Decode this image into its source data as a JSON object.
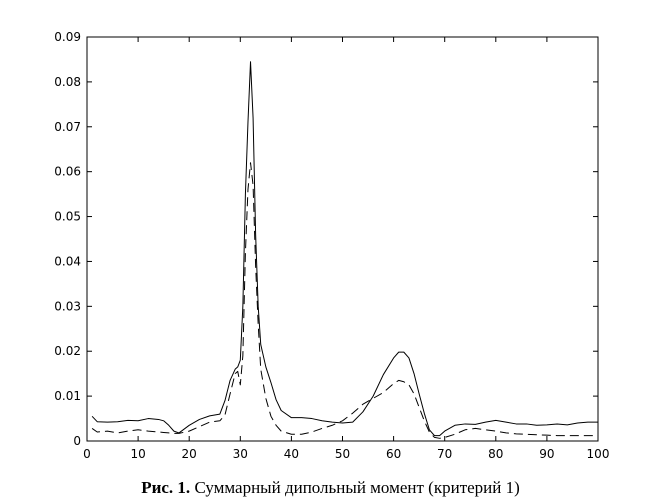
{
  "chart_data": {
    "type": "line",
    "title": "",
    "xlabel": "",
    "ylabel": "",
    "xlim": [
      0,
      100
    ],
    "ylim": [
      0,
      0.09
    ],
    "x_ticks": [
      0,
      10,
      20,
      30,
      40,
      50,
      60,
      70,
      80,
      90,
      100
    ],
    "x_tick_labels": [
      "0",
      "10",
      "20",
      "30",
      "40",
      "50",
      "60",
      "70",
      "80",
      "90",
      "100"
    ],
    "y_ticks": [
      0,
      0.01,
      0.02,
      0.03,
      0.04,
      0.05,
      0.06,
      0.07,
      0.08,
      0.09
    ],
    "y_tick_labels": [
      "0",
      "0.01",
      "0.02",
      "0.03",
      "0.04",
      "0.05",
      "0.06",
      "0.07",
      "0.08",
      "0.09"
    ],
    "grid": false,
    "legend": false,
    "series": [
      {
        "style": "solid",
        "color": "#000000",
        "x": [
          1,
          2,
          4,
          6,
          8,
          10,
          12,
          14,
          15,
          16,
          17,
          18,
          20,
          22,
          24,
          26,
          27,
          28,
          29,
          29.5,
          30,
          30.5,
          31,
          31.5,
          32,
          32.5,
          33,
          33.5,
          34,
          35,
          36,
          37,
          38,
          40,
          42,
          44,
          46,
          48,
          50,
          52,
          54,
          56,
          58,
          60,
          61,
          62,
          63,
          64,
          65,
          66,
          67,
          68,
          69,
          70,
          72,
          74,
          76,
          78,
          80,
          82,
          84,
          86,
          88,
          90,
          92,
          94,
          96,
          98,
          100
        ],
        "y": [
          0.0055,
          0.0043,
          0.0042,
          0.0043,
          0.0046,
          0.0045,
          0.005,
          0.0048,
          0.0045,
          0.0035,
          0.0022,
          0.0018,
          0.0035,
          0.0048,
          0.0056,
          0.006,
          0.009,
          0.0135,
          0.016,
          0.0165,
          0.018,
          0.03,
          0.055,
          0.071,
          0.0845,
          0.072,
          0.046,
          0.03,
          0.0215,
          0.0165,
          0.013,
          0.0092,
          0.0068,
          0.0052,
          0.0052,
          0.005,
          0.0045,
          0.0042,
          0.004,
          0.0042,
          0.0065,
          0.01,
          0.0148,
          0.0185,
          0.0198,
          0.0198,
          0.0185,
          0.015,
          0.0105,
          0.0062,
          0.0025,
          0.0012,
          0.0012,
          0.0022,
          0.0035,
          0.0038,
          0.0037,
          0.0042,
          0.0046,
          0.0042,
          0.0038,
          0.0038,
          0.0035,
          0.0036,
          0.0038,
          0.0036,
          0.004,
          0.0042,
          0.0042
        ]
      },
      {
        "style": "dashed",
        "color": "#000000",
        "x": [
          1,
          2,
          4,
          6,
          8,
          10,
          12,
          14,
          15,
          16,
          17,
          18,
          20,
          22,
          24,
          26,
          27,
          28,
          29,
          29.5,
          30,
          30.5,
          31,
          31.5,
          32,
          32.5,
          33,
          33.5,
          34,
          35,
          36,
          37,
          38,
          40,
          42,
          44,
          46,
          48,
          50,
          52,
          54,
          56,
          58,
          60,
          61,
          62,
          63,
          64,
          65,
          66,
          67,
          68,
          69,
          70,
          72,
          74,
          76,
          78,
          80,
          82,
          84,
          86,
          88,
          90,
          92,
          94,
          96,
          98,
          100
        ],
        "y": [
          0.0028,
          0.002,
          0.0022,
          0.0018,
          0.0022,
          0.0025,
          0.0022,
          0.002,
          0.0019,
          0.0018,
          0.0017,
          0.0017,
          0.0022,
          0.0032,
          0.0042,
          0.0045,
          0.0058,
          0.0105,
          0.015,
          0.0155,
          0.0125,
          0.019,
          0.042,
          0.056,
          0.062,
          0.057,
          0.039,
          0.026,
          0.016,
          0.0095,
          0.0055,
          0.0035,
          0.0022,
          0.0015,
          0.0015,
          0.002,
          0.0028,
          0.0035,
          0.0045,
          0.0062,
          0.0082,
          0.0095,
          0.0108,
          0.0128,
          0.0135,
          0.0132,
          0.0125,
          0.0105,
          0.0075,
          0.0045,
          0.002,
          0.0008,
          0.0006,
          0.0008,
          0.0015,
          0.0025,
          0.0028,
          0.0025,
          0.0022,
          0.0018,
          0.0016,
          0.0015,
          0.0014,
          0.0013,
          0.0012,
          0.0012,
          0.0012,
          0.0012,
          0.0012
        ]
      }
    ]
  },
  "caption": {
    "label": "Рис. 1.",
    "text": "Суммарный дипольный момент (критерий 1)"
  }
}
